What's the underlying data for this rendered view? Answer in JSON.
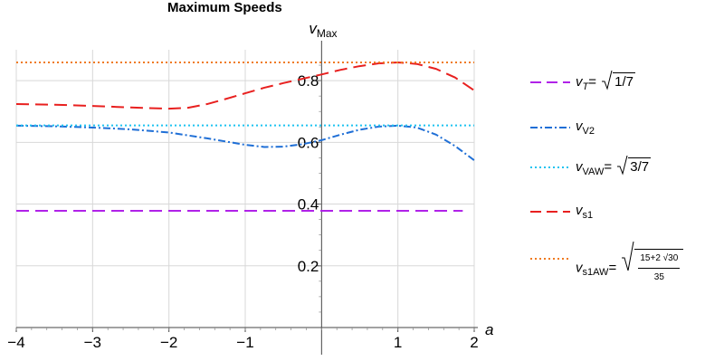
{
  "chart_data": {
    "type": "line",
    "title": "Maximum Speeds",
    "xlabel": "a",
    "ylabel": "v_Max",
    "ylabel_main": "v",
    "ylabel_sub": "Max",
    "xlim": [
      -4,
      2
    ],
    "ylim": [
      0,
      0.9
    ],
    "x_ticks": [
      -4,
      -3,
      -2,
      -1,
      1,
      2
    ],
    "x_tick_labels": [
      "−4",
      "−3",
      "−2",
      "−1",
      "1",
      "2"
    ],
    "y_ticks": [
      0.2,
      0.4,
      0.6,
      0.8
    ],
    "y_tick_labels": [
      "0.2",
      "0.4",
      "0.6",
      "0.8"
    ],
    "grid": true,
    "legend_position": "right",
    "series": [
      {
        "name": "v_T = √(1/7)",
        "style": "dashed",
        "color": "#b022e8",
        "x": [
          -4,
          1.85
        ],
        "y": [
          0.378,
          0.378
        ]
      },
      {
        "name": "v_V2",
        "style": "dashdot",
        "color": "#1f6fd6",
        "x": [
          -4,
          -3.5,
          -3,
          -2.5,
          -2,
          -1.5,
          -1,
          -0.75,
          -0.5,
          -0.25,
          0,
          0.25,
          0.5,
          0.75,
          1,
          1.25,
          1.5,
          1.75,
          2
        ],
        "y": [
          0.654,
          0.652,
          0.648,
          0.642,
          0.632,
          0.613,
          0.592,
          0.585,
          0.586,
          0.594,
          0.607,
          0.625,
          0.641,
          0.651,
          0.654,
          0.648,
          0.625,
          0.588,
          0.542
        ]
      },
      {
        "name": "v_VAW = √(3/7)",
        "style": "dotted",
        "color": "#1fc3f0",
        "x": [
          -4,
          2
        ],
        "y": [
          0.655,
          0.655
        ]
      },
      {
        "name": "v_s1",
        "style": "dashed",
        "color": "#e8201f",
        "x": [
          -4,
          -3.5,
          -3,
          -2.5,
          -2,
          -1.75,
          -1.5,
          -1.25,
          -1,
          -0.75,
          -0.5,
          -0.25,
          0,
          0.25,
          0.5,
          0.75,
          1,
          1.25,
          1.5,
          1.75,
          2
        ],
        "y": [
          0.724,
          0.722,
          0.718,
          0.713,
          0.709,
          0.712,
          0.724,
          0.741,
          0.759,
          0.777,
          0.792,
          0.806,
          0.82,
          0.835,
          0.847,
          0.856,
          0.859,
          0.854,
          0.838,
          0.81,
          0.768
        ]
      },
      {
        "name": "v_s1AW = √((15+2√30)/35)",
        "style": "dotted",
        "color": "#f07a1f",
        "x": [
          -4,
          2
        ],
        "y": [
          0.859,
          0.859
        ]
      }
    ]
  },
  "legend": [
    {
      "key": "vT",
      "main": "v",
      "sub": "T",
      "sub_italic": true,
      "eq": "= ",
      "rad": "1/7"
    },
    {
      "key": "vV2",
      "main": "v",
      "sub": "V2",
      "sub_italic": false,
      "eq": "",
      "rad": ""
    },
    {
      "key": "vVAW",
      "main": "v",
      "sub": "VAW",
      "sub_italic": false,
      "eq": "= ",
      "rad": "3/7"
    },
    {
      "key": "vs1",
      "main": "v",
      "sub": "s1",
      "sub_italic": false,
      "eq": "",
      "rad": ""
    },
    {
      "key": "vs1AW",
      "main": "v",
      "sub": "s1AW",
      "sub_italic": false,
      "eq": "= ",
      "num": "15+2 √30",
      "den": "35"
    }
  ]
}
